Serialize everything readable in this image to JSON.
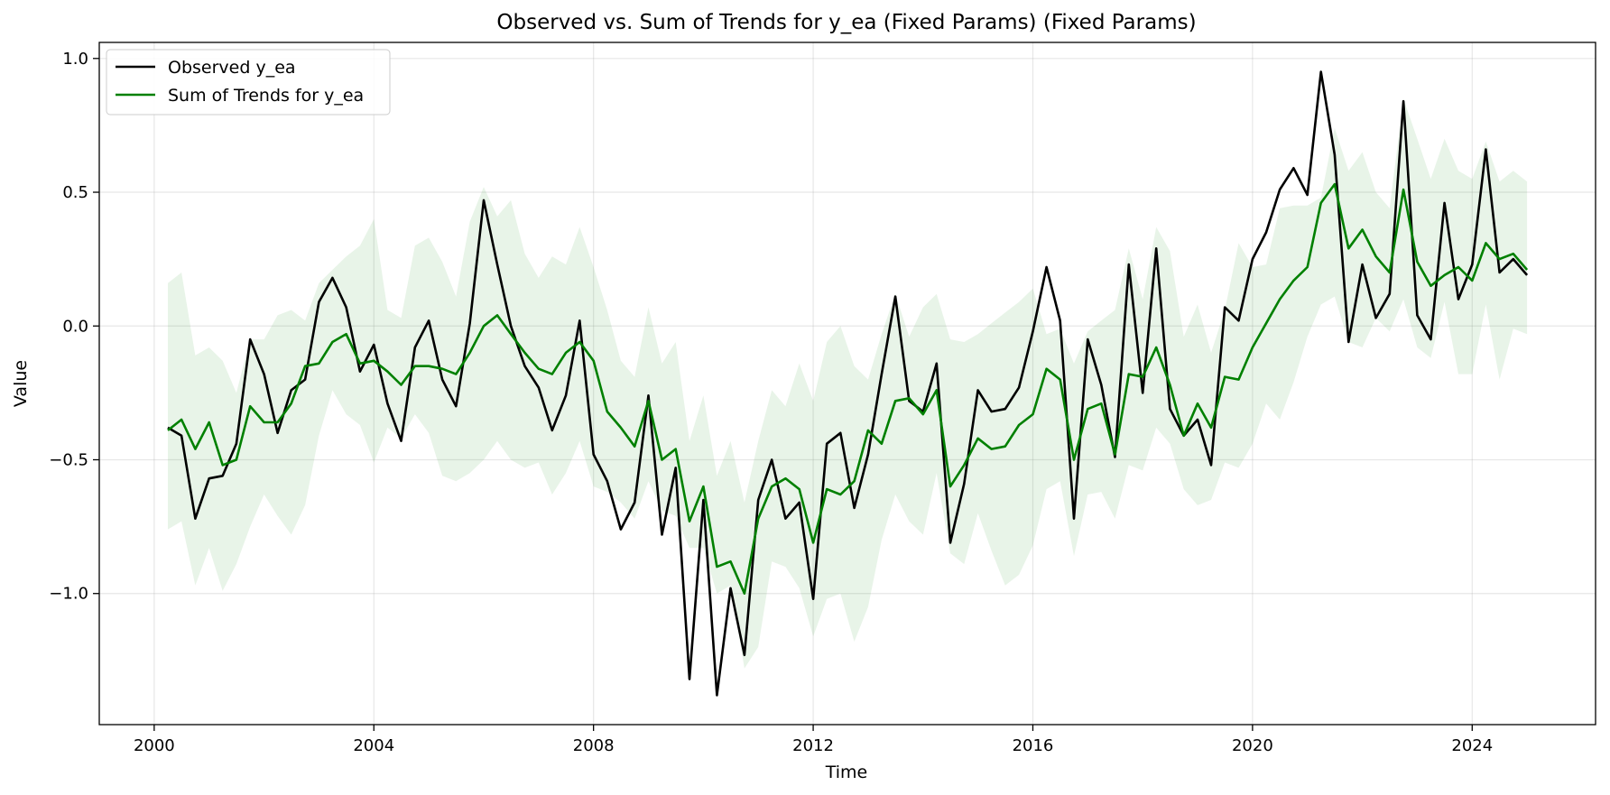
{
  "chart_data": {
    "type": "line",
    "title": "Observed vs. Sum of Trends for y_ea (Fixed Params) (Fixed Params)",
    "xlabel": "Time",
    "ylabel": "Value",
    "xlim": [
      "1999-01-01",
      "2026-04-01"
    ],
    "ylim": [
      -1.49,
      1.06
    ],
    "x_ticks": [
      "2000",
      "2004",
      "2008",
      "2012",
      "2016",
      "2020",
      "2024"
    ],
    "y_ticks": [
      {
        "value": 1.0,
        "label": "1.0"
      },
      {
        "value": 0.5,
        "label": "0.5"
      },
      {
        "value": 0.0,
        "label": "0.0"
      },
      {
        "value": -0.5,
        "label": "−0.5"
      },
      {
        "value": -1.0,
        "label": "−1.0"
      }
    ],
    "grid": true,
    "legend_position": "top-left",
    "x": [
      "2000-04-01",
      "2000-07-01",
      "2000-10-01",
      "2001-01-01",
      "2001-04-01",
      "2001-07-01",
      "2001-10-01",
      "2002-01-01",
      "2002-04-01",
      "2002-07-01",
      "2002-10-01",
      "2003-01-01",
      "2003-04-01",
      "2003-07-01",
      "2003-10-01",
      "2004-01-01",
      "2004-04-01",
      "2004-07-01",
      "2004-10-01",
      "2005-01-01",
      "2005-04-01",
      "2005-07-01",
      "2005-10-01",
      "2006-01-01",
      "2006-04-01",
      "2006-07-01",
      "2006-10-01",
      "2007-01-01",
      "2007-04-01",
      "2007-07-01",
      "2007-10-01",
      "2008-01-01",
      "2008-04-01",
      "2008-07-01",
      "2008-10-01",
      "2009-01-01",
      "2009-04-01",
      "2009-07-01",
      "2009-10-01",
      "2010-01-01",
      "2010-04-01",
      "2010-07-01",
      "2010-10-01",
      "2011-01-01",
      "2011-04-01",
      "2011-07-01",
      "2011-10-01",
      "2012-01-01",
      "2012-04-01",
      "2012-07-01",
      "2012-10-01",
      "2013-01-01",
      "2013-04-01",
      "2013-07-01",
      "2013-10-01",
      "2014-01-01",
      "2014-04-01",
      "2014-07-01",
      "2014-10-01",
      "2015-01-01",
      "2015-04-01",
      "2015-07-01",
      "2015-10-01",
      "2016-01-01",
      "2016-04-01",
      "2016-07-01",
      "2016-10-01",
      "2017-01-01",
      "2017-04-01",
      "2017-07-01",
      "2017-10-01",
      "2018-01-01",
      "2018-04-01",
      "2018-07-01",
      "2018-10-01",
      "2019-01-01",
      "2019-04-01",
      "2019-07-01",
      "2019-10-01",
      "2020-01-01",
      "2020-04-01",
      "2020-07-01",
      "2020-10-01",
      "2021-01-01",
      "2021-04-01",
      "2021-07-01",
      "2021-10-01",
      "2022-01-01",
      "2022-04-01",
      "2022-07-01",
      "2022-10-01",
      "2023-01-01",
      "2023-04-01",
      "2023-07-01",
      "2023-10-01",
      "2024-01-01",
      "2024-04-01",
      "2024-07-01",
      "2024-10-01",
      "2025-01-01"
    ],
    "series": [
      {
        "name": "Observed y_ea",
        "color": "#000000",
        "values": [
          -0.38,
          -0.41,
          -0.72,
          -0.57,
          -0.56,
          -0.44,
          -0.05,
          -0.18,
          -0.4,
          -0.24,
          -0.2,
          0.09,
          0.18,
          0.07,
          -0.17,
          -0.07,
          -0.29,
          -0.43,
          -0.08,
          0.02,
          -0.2,
          -0.3,
          0.01,
          0.47,
          0.23,
          0.0,
          -0.15,
          -0.23,
          -0.39,
          -0.26,
          0.02,
          -0.48,
          -0.58,
          -0.76,
          -0.66,
          -0.26,
          -0.78,
          -0.53,
          -1.32,
          -0.65,
          -1.38,
          -0.98,
          -1.23,
          -0.65,
          -0.5,
          -0.72,
          -0.66,
          -1.02,
          -0.44,
          -0.4,
          -0.68,
          -0.48,
          -0.18,
          0.11,
          -0.28,
          -0.32,
          -0.14,
          -0.81,
          -0.59,
          -0.24,
          -0.32,
          -0.31,
          -0.23,
          -0.02,
          0.22,
          0.02,
          -0.72,
          -0.05,
          -0.22,
          -0.49,
          0.23,
          -0.25,
          0.29,
          -0.31,
          -0.41,
          -0.35,
          -0.52,
          0.07,
          0.02,
          0.25,
          0.35,
          0.51,
          0.59,
          0.49,
          0.95,
          0.64,
          -0.06,
          0.23,
          0.03,
          0.12,
          0.84,
          0.04,
          -0.05,
          0.46,
          0.1,
          0.23,
          0.66,
          0.2,
          0.25,
          0.19
        ]
      },
      {
        "name": "Sum of Trends for y_ea",
        "color": "#008000",
        "values": [
          -0.39,
          -0.35,
          -0.46,
          -0.36,
          -0.52,
          -0.5,
          -0.3,
          -0.36,
          -0.36,
          -0.29,
          -0.15,
          -0.14,
          -0.06,
          -0.03,
          -0.14,
          -0.13,
          -0.17,
          -0.22,
          -0.15,
          -0.15,
          -0.16,
          -0.18,
          -0.1,
          0.0,
          0.04,
          -0.03,
          -0.1,
          -0.16,
          -0.18,
          -0.1,
          -0.06,
          -0.13,
          -0.32,
          -0.38,
          -0.45,
          -0.28,
          -0.5,
          -0.46,
          -0.73,
          -0.6,
          -0.9,
          -0.88,
          -1.0,
          -0.72,
          -0.6,
          -0.57,
          -0.61,
          -0.81,
          -0.61,
          -0.63,
          -0.58,
          -0.39,
          -0.44,
          -0.28,
          -0.27,
          -0.33,
          -0.24,
          -0.6,
          -0.52,
          -0.42,
          -0.46,
          -0.45,
          -0.37,
          -0.33,
          -0.16,
          -0.2,
          -0.5,
          -0.31,
          -0.29,
          -0.48,
          -0.18,
          -0.19,
          -0.08,
          -0.22,
          -0.41,
          -0.29,
          -0.38,
          -0.19,
          -0.2,
          -0.08,
          0.01,
          0.1,
          0.17,
          0.22,
          0.46,
          0.53,
          0.29,
          0.36,
          0.26,
          0.2,
          0.51,
          0.24,
          0.15,
          0.19,
          0.22,
          0.17,
          0.31,
          0.25,
          0.27,
          0.21
        ]
      }
    ],
    "band": {
      "series": "Sum of Trends for y_ea",
      "color": "#008000",
      "lower": [
        -0.76,
        -0.73,
        -0.97,
        -0.83,
        -0.99,
        -0.89,
        -0.75,
        -0.63,
        -0.71,
        -0.78,
        -0.67,
        -0.41,
        -0.24,
        -0.33,
        -0.37,
        -0.51,
        -0.38,
        -0.42,
        -0.33,
        -0.4,
        -0.56,
        -0.58,
        -0.55,
        -0.5,
        -0.43,
        -0.5,
        -0.53,
        -0.51,
        -0.63,
        -0.55,
        -0.43,
        -0.6,
        -0.62,
        -0.66,
        -0.72,
        -0.58,
        -0.69,
        -0.71,
        -0.83,
        -0.83,
        -1.0,
        -0.97,
        -1.28,
        -1.2,
        -0.88,
        -0.9,
        -0.98,
        -1.16,
        -1.02,
        -1.0,
        -1.18,
        -1.05,
        -0.8,
        -0.63,
        -0.73,
        -0.78,
        -0.55,
        -0.85,
        -0.89,
        -0.7,
        -0.84,
        -0.97,
        -0.93,
        -0.82,
        -0.61,
        -0.58,
        -0.86,
        -0.63,
        -0.62,
        -0.72,
        -0.52,
        -0.54,
        -0.38,
        -0.44,
        -0.61,
        -0.67,
        -0.65,
        -0.51,
        -0.53,
        -0.44,
        -0.29,
        -0.35,
        -0.21,
        -0.04,
        0.08,
        0.11,
        -0.06,
        -0.08,
        0.03,
        -0.02,
        0.1,
        -0.08,
        -0.12,
        0.09,
        -0.18,
        -0.18,
        0.08,
        -0.2,
        -0.01,
        -0.03
      ],
      "upper": [
        0.16,
        0.2,
        -0.11,
        -0.08,
        -0.13,
        -0.25,
        -0.05,
        -0.05,
        0.04,
        0.06,
        0.02,
        0.16,
        0.21,
        0.26,
        0.3,
        0.4,
        0.06,
        0.03,
        0.3,
        0.33,
        0.24,
        0.11,
        0.39,
        0.52,
        0.41,
        0.47,
        0.27,
        0.18,
        0.26,
        0.23,
        0.37,
        0.22,
        0.06,
        -0.13,
        -0.19,
        0.07,
        -0.14,
        -0.06,
        -0.43,
        -0.26,
        -0.56,
        -0.43,
        -0.66,
        -0.43,
        -0.24,
        -0.3,
        -0.14,
        -0.28,
        -0.06,
        0.0,
        -0.15,
        -0.2,
        -0.03,
        0.12,
        -0.04,
        0.07,
        0.12,
        -0.05,
        -0.06,
        -0.03,
        0.01,
        0.05,
        0.09,
        0.14,
        -0.03,
        -0.01,
        -0.14,
        -0.02,
        0.02,
        0.06,
        0.29,
        0.1,
        0.37,
        0.28,
        -0.04,
        0.08,
        -0.1,
        0.06,
        0.31,
        0.22,
        0.23,
        0.44,
        0.45,
        0.45,
        0.48,
        0.74,
        0.58,
        0.65,
        0.5,
        0.44,
        0.85,
        0.7,
        0.55,
        0.7,
        0.58,
        0.55,
        0.69,
        0.54,
        0.58,
        0.54
      ]
    }
  }
}
